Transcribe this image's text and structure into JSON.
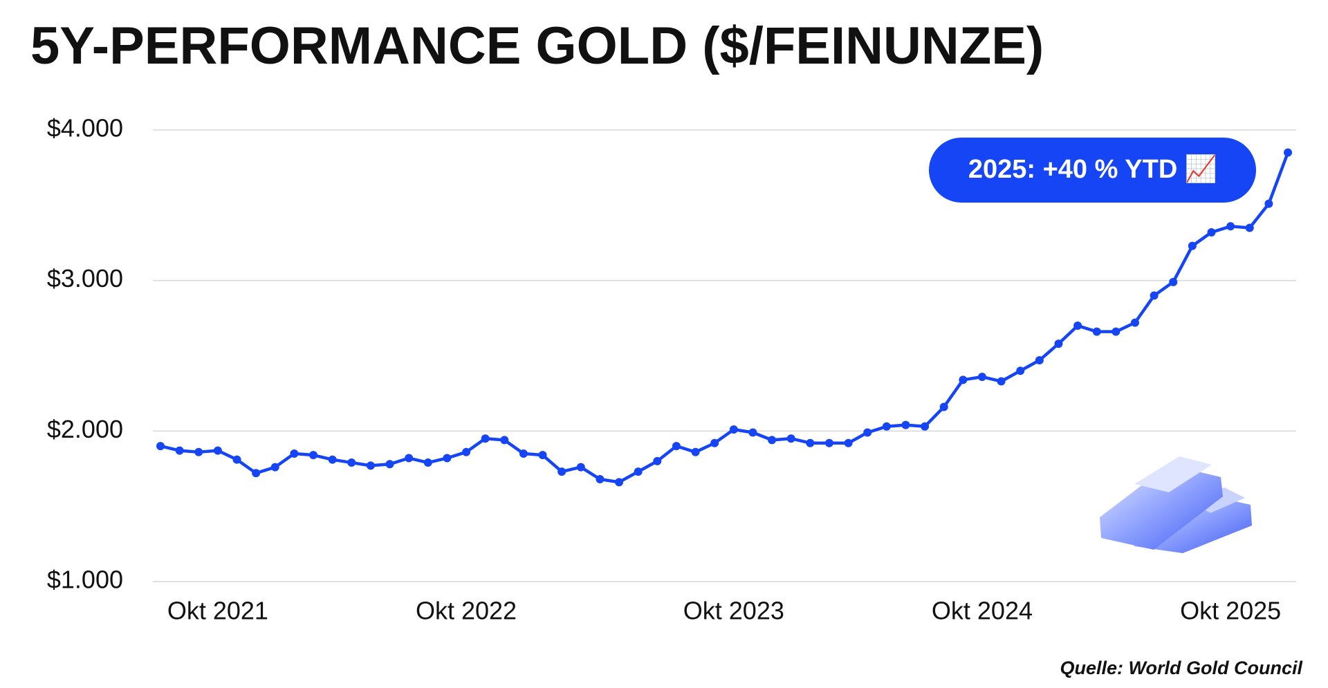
{
  "chart_data": {
    "type": "line",
    "title": "5Y-PERFORMANCE GOLD ($/FEINUNZE)",
    "annotation": "2025: +40 % YTD 📈",
    "source": "Quelle: World Gold Council",
    "categories": [
      null,
      null,
      null,
      "Okt 2021",
      null,
      null,
      null,
      null,
      null,
      null,
      null,
      null,
      null,
      null,
      null,
      null,
      "Okt 2022",
      null,
      null,
      null,
      null,
      null,
      null,
      null,
      null,
      null,
      null,
      null,
      null,
      null,
      "Okt 2023",
      null,
      null,
      null,
      null,
      null,
      null,
      null,
      null,
      null,
      null,
      null,
      null,
      "Okt 2024",
      null,
      null,
      null,
      null,
      null,
      null,
      null,
      null,
      null,
      null,
      null,
      null,
      "Okt 2025",
      null,
      null,
      null
    ],
    "values": [
      1900,
      1870,
      1860,
      1870,
      1810,
      1720,
      1760,
      1850,
      1840,
      1810,
      1790,
      1770,
      1780,
      1820,
      1790,
      1820,
      1860,
      1950,
      1940,
      1850,
      1840,
      1730,
      1760,
      1680,
      1660,
      1730,
      1800,
      1900,
      1860,
      1920,
      2010,
      1990,
      1940,
      1950,
      1920,
      1920,
      1920,
      1990,
      2030,
      2040,
      2030,
      2160,
      2340,
      2360,
      2330,
      2400,
      2470,
      2580,
      2700,
      2660,
      2660,
      2720,
      2900,
      2990,
      3230,
      3320,
      3360,
      3350,
      3510,
      3850
    ],
    "color": "#1545f5",
    "ylim": [
      1000,
      4000
    ],
    "yticks": [
      {
        "value": 1000,
        "label": "$1.000"
      },
      {
        "value": 2000,
        "label": "$2.000"
      },
      {
        "value": 3000,
        "label": "$3.000"
      },
      {
        "value": 4000,
        "label": "$4.000"
      }
    ],
    "grid": true
  }
}
